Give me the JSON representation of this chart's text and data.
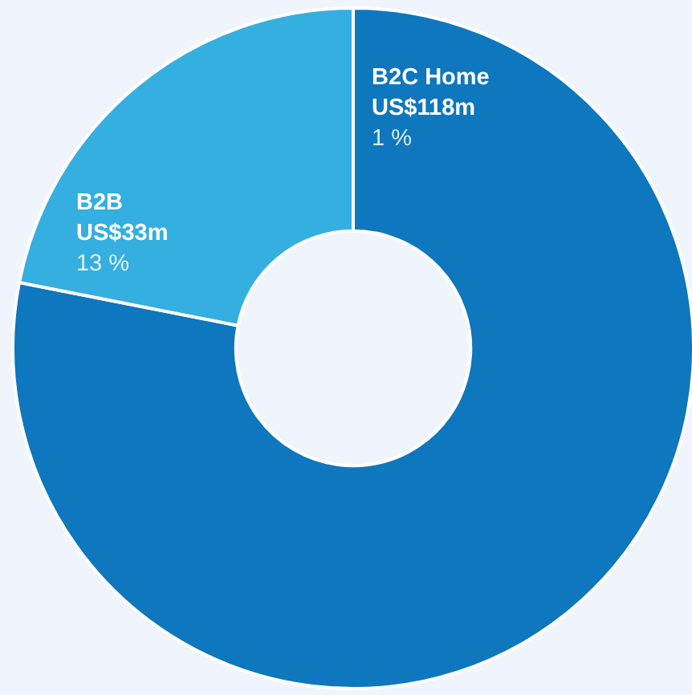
{
  "chart_data": {
    "type": "donut",
    "categories": [
      "B2C Home",
      "B2B"
    ],
    "values": [
      78.1,
      21.9
    ],
    "colors": [
      "#0e77be",
      "#35aee0"
    ],
    "value_labels": [
      "US$118m",
      "US$33m"
    ],
    "annotations": [
      {
        "text": "1 %",
        "x": "B2C Home"
      },
      {
        "text": "13 %",
        "x": "B2B"
      }
    ]
  }
}
